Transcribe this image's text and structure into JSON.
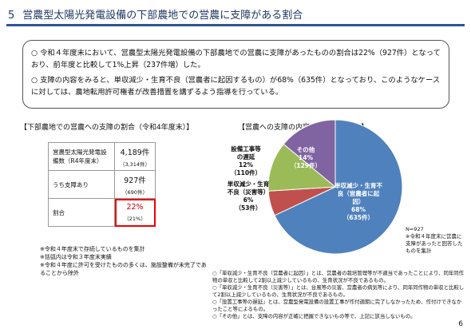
{
  "header": {
    "number": "5",
    "title": "営農型太陽光発電設備の下部農地での営農に支障がある割合"
  },
  "summary": [
    "○ 令和４年度末において、営農型太陽光発電設備の下部農地での営農に支障があったものの割合は22%（927件）となっており、前年度と比較して1%上昇（237件増）した。",
    "○ 支障の内容をみると、単収減少・生育不良（営農者に起因するもの）が68%（635件）となっており、このようなケースに対しては、農地転用許可権者が改善措置を講ずるよう指導を行っている。"
  ],
  "table": {
    "title": "【下部農地での営農への支障の割合（令和4年度末）】",
    "rows": [
      [
        "営農型太陽光発電設備数（R4年度末）",
        "4,189件",
        "（3,314件）"
      ],
      [
        "うち支障あり",
        "927件",
        "（690件）"
      ],
      [
        "割合",
        "22%",
        "（21%）"
      ]
    ],
    "notes": [
      "※令和４年度末で存続しているものを集計",
      "※括弧内は令和３年度末実績",
      "※令和４年度に許可を受けたものの多くは、施設整備が未完了であることから除外"
    ]
  },
  "chart_data": {
    "type": "pie",
    "title": "【営農への支障の内容（令和4年度末）】",
    "categories": [
      "単収減少・生育不良（営農者に起因）",
      "単収減少・生育不良（災害等）",
      "設備工事等の遅延",
      "その他"
    ],
    "values": [
      68,
      6,
      12,
      14
    ],
    "value_labels": [
      "68%",
      "6%",
      "12%",
      "14%"
    ],
    "count_labels": [
      "（635件）",
      "（53件）",
      "（110件）",
      "（129件）"
    ],
    "colors": [
      "#4f81bd",
      "#c0504d",
      "#9bbb59",
      "#8064a2"
    ],
    "notes": [
      "N=927",
      "※令和４年度末に営農に支障があったと回答したものを集計"
    ]
  },
  "footnotes": [
    "○「単収減少・生育不良（営農者に起因）」とは、営農者の栽培管理等が不適当であったことにより、同年同作物の単収と比較して2割以上減少しているもの、生育状況が不良であるもの。",
    "○「単収減少・生育不良（災害等）」とは、台風等の災害、営農者の病気等により、同年同作物の単収と比較して2割以上減少しているもの、生育状況が不良であるもの。",
    "○「設置工事等の遅延」とは、営農型発電設備の設置工事が作付適期に完了しなかったため、作付けできなかったこと等によるもの。",
    "○「その他」とは、支障の内容が正確に把握できないもの等で、上記に該当しないもの。"
  ],
  "page_number": "6"
}
